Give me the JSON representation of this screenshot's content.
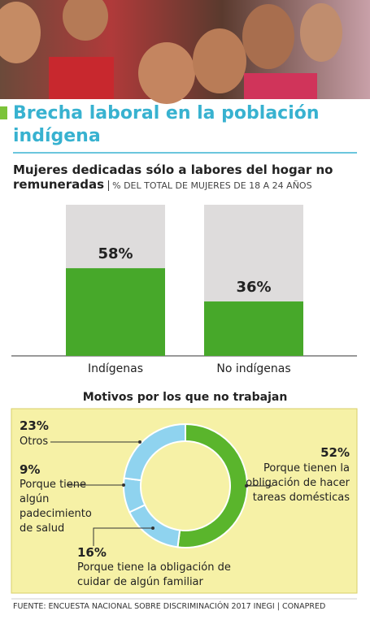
{
  "title": "Brecha laboral en la población indígena",
  "source": "FUENTE: ENCUESTA NACIONAL SOBRE DISCRIMINACIÓN 2017 INEGI | CONAPRED",
  "chart_data": [
    {
      "type": "bar",
      "title": "Mujeres dedicadas sólo a labores del hogar no remuneradas",
      "subtitle": "% DEL TOTAL DE MUJERES DE 18 A 24 AÑOS",
      "categories": [
        "Indígenas",
        "No indígenas"
      ],
      "values": [
        58,
        36
      ],
      "value_labels": [
        "58%",
        "36%"
      ],
      "color": "#47a82a",
      "ylim": [
        0,
        100
      ]
    },
    {
      "type": "donut",
      "title": "Motivos por los que no trabajan",
      "categories": [
        "Porque tienen la obligación de hacer tareas domésticas",
        "Porque tiene la obligación de cuidar de algún familiar",
        "Porque tiene algún padecimiento de salud",
        "Otros"
      ],
      "values": [
        52,
        16,
        9,
        23
      ],
      "value_labels": [
        "52%",
        "16%",
        "9%",
        "23%"
      ],
      "colors": [
        "#5ab52c",
        "#8fd3ef",
        "#8fd3ef",
        "#8fd3ef"
      ]
    }
  ]
}
